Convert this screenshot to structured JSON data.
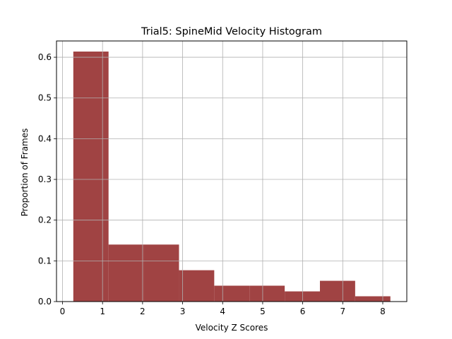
{
  "chart_data": {
    "type": "bar",
    "title": "Trial5: SpineMid Velocity Histogram",
    "xlabel": "Velocity Z Scores",
    "ylabel": "Proportion of Frames",
    "xlim": [
      -0.15,
      8.6
    ],
    "ylim": [
      0,
      0.64
    ],
    "xticks": [
      0,
      1,
      2,
      3,
      4,
      5,
      6,
      7,
      8
    ],
    "yticks": [
      0.0,
      0.1,
      0.2,
      0.3,
      0.4,
      0.5,
      0.6
    ],
    "ytick_labels": [
      "0.0",
      "0.1",
      "0.2",
      "0.3",
      "0.4",
      "0.5",
      "0.6"
    ],
    "bins": [
      {
        "x0": 0.27,
        "x1": 1.15,
        "value": 0.614
      },
      {
        "x0": 1.15,
        "x1": 2.03,
        "value": 0.14
      },
      {
        "x0": 2.03,
        "x1": 2.91,
        "value": 0.14
      },
      {
        "x0": 2.91,
        "x1": 3.79,
        "value": 0.077
      },
      {
        "x0": 3.79,
        "x1": 4.67,
        "value": 0.039
      },
      {
        "x0": 4.67,
        "x1": 5.55,
        "value": 0.039
      },
      {
        "x0": 5.55,
        "x1": 6.43,
        "value": 0.025
      },
      {
        "x0": 6.43,
        "x1": 7.31,
        "value": 0.051
      },
      {
        "x0": 7.31,
        "x1": 8.19,
        "value": 0.013
      }
    ],
    "bar_color": "#a04343",
    "grid": true
  }
}
